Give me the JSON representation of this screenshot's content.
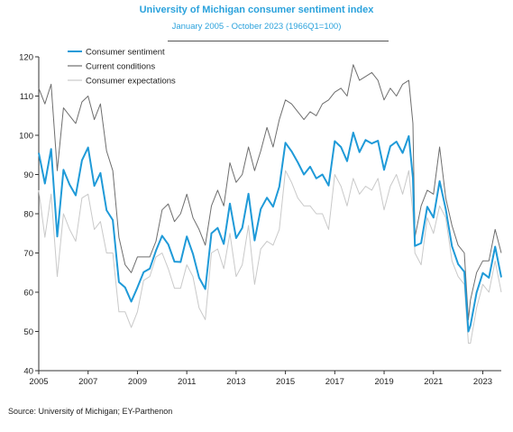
{
  "title": "University of Michigan consumer sentiment index",
  "subtitle": "January 2005 - October 2023 (1966Q1=100)",
  "source": "Source: University of Michigan; EY-Parthenon",
  "colors": {
    "Consumer sentiment": "#1f9ad8",
    "Current conditions": "#6e6e6e",
    "Consumer expectations": "#c9c9c9"
  },
  "chart_data": {
    "type": "line",
    "title": "University of Michigan consumer sentiment index",
    "subtitle": "January 2005 - October 2023 (1966Q1=100)",
    "xlabel": "",
    "ylabel": "",
    "x": [
      "2005-01",
      "2005-04",
      "2005-07",
      "2005-10",
      "2006-01",
      "2006-04",
      "2006-07",
      "2006-10",
      "2007-01",
      "2007-04",
      "2007-07",
      "2007-10",
      "2008-01",
      "2008-04",
      "2008-07",
      "2008-10",
      "2009-01",
      "2009-04",
      "2009-07",
      "2009-10",
      "2010-01",
      "2010-04",
      "2010-07",
      "2010-10",
      "2011-01",
      "2011-04",
      "2011-07",
      "2011-10",
      "2012-01",
      "2012-04",
      "2012-07",
      "2012-10",
      "2013-01",
      "2013-04",
      "2013-07",
      "2013-10",
      "2014-01",
      "2014-04",
      "2014-07",
      "2014-10",
      "2015-01",
      "2015-04",
      "2015-07",
      "2015-10",
      "2016-01",
      "2016-04",
      "2016-07",
      "2016-10",
      "2017-01",
      "2017-04",
      "2017-07",
      "2017-10",
      "2018-01",
      "2018-04",
      "2018-07",
      "2018-10",
      "2019-01",
      "2019-04",
      "2019-07",
      "2019-10",
      "2020-01",
      "2020-03",
      "2020-04",
      "2020-07",
      "2020-10",
      "2021-01",
      "2021-04",
      "2021-07",
      "2021-10",
      "2022-01",
      "2022-04",
      "2022-06",
      "2022-07",
      "2022-10",
      "2023-01",
      "2023-04",
      "2023-07",
      "2023-10"
    ],
    "series": [
      {
        "name": "Consumer sentiment",
        "values": [
          95.5,
          87.7,
          96.5,
          74.2,
          91.2,
          87.4,
          84.7,
          93.6,
          96.9,
          87.1,
          90.4,
          80.9,
          78.4,
          62.6,
          61.2,
          57.6,
          61.2,
          65.1,
          66.0,
          70.6,
          74.4,
          72.2,
          67.8,
          67.7,
          74.2,
          69.8,
          63.7,
          60.8,
          75.0,
          76.4,
          72.3,
          82.6,
          73.8,
          76.4,
          85.1,
          73.2,
          81.2,
          84.1,
          81.8,
          86.9,
          98.1,
          95.9,
          93.1,
          90.0,
          92.0,
          89.0,
          90.0,
          87.2,
          98.5,
          97.0,
          93.4,
          100.7,
          95.7,
          98.8,
          97.9,
          98.6,
          91.2,
          97.2,
          98.4,
          95.5,
          99.8,
          89.1,
          71.8,
          72.5,
          81.8,
          79.0,
          88.3,
          81.2,
          71.7,
          67.2,
          65.2,
          50.0,
          51.5,
          59.9,
          64.9,
          63.7,
          71.6,
          63.8
        ]
      },
      {
        "name": "Current conditions",
        "values": [
          112.0,
          108.0,
          113.0,
          91.0,
          107.0,
          105.0,
          103.0,
          108.5,
          110.0,
          104.0,
          108.0,
          96.0,
          91.0,
          74.0,
          67.0,
          65.0,
          69.0,
          69.0,
          69.0,
          73.0,
          81.0,
          82.5,
          78.0,
          80.0,
          85.0,
          79.0,
          76.0,
          72.0,
          82.0,
          86.0,
          82.0,
          93.0,
          88.0,
          90.0,
          97.0,
          91.0,
          96.0,
          102.0,
          97.0,
          104.0,
          109.0,
          108.0,
          106.0,
          104.0,
          106.0,
          105.0,
          108.0,
          109.0,
          111.0,
          112.0,
          110.0,
          118.0,
          114.0,
          115.0,
          116.0,
          114.0,
          109.0,
          112.0,
          110.0,
          113.0,
          114.0,
          103.0,
          74.0,
          82.0,
          86.0,
          85.0,
          97.0,
          84.0,
          77.0,
          72.0,
          70.0,
          53.0,
          58.0,
          65.0,
          68.0,
          68.0,
          76.0,
          70.0
        ]
      },
      {
        "name": "Consumer expectations",
        "values": [
          86.0,
          74.0,
          85.0,
          64.0,
          80.0,
          76.0,
          73.0,
          84.0,
          85.0,
          76.0,
          78.0,
          70.0,
          70.0,
          55.0,
          55.0,
          51.0,
          55.0,
          63.0,
          64.0,
          69.0,
          70.0,
          66.0,
          61.0,
          61.0,
          67.0,
          64.0,
          56.0,
          53.0,
          70.0,
          71.0,
          66.0,
          75.0,
          64.0,
          67.0,
          77.0,
          62.0,
          71.0,
          73.0,
          72.0,
          76.0,
          91.0,
          88.0,
          84.0,
          82.0,
          82.0,
          80.0,
          80.0,
          76.0,
          90.0,
          87.0,
          82.0,
          89.0,
          85.0,
          87.0,
          86.0,
          89.0,
          81.0,
          87.0,
          90.0,
          85.0,
          91.0,
          80.0,
          70.0,
          67.0,
          79.0,
          75.0,
          82.0,
          79.0,
          68.0,
          64.0,
          62.0,
          47.0,
          47.0,
          56.0,
          62.0,
          60.0,
          68.0,
          60.0
        ]
      }
    ],
    "x_ticks": [
      "2005",
      "2007",
      "2009",
      "2011",
      "2013",
      "2015",
      "2017",
      "2019",
      "2021",
      "2023"
    ],
    "y_ticks": [
      "40",
      "50",
      "60",
      "70",
      "80",
      "90",
      "100",
      "110",
      "120"
    ],
    "xlim": [
      "2005-01",
      "2023-10"
    ],
    "ylim": [
      40,
      120
    ],
    "grid": false,
    "legend_position": "top-left"
  }
}
